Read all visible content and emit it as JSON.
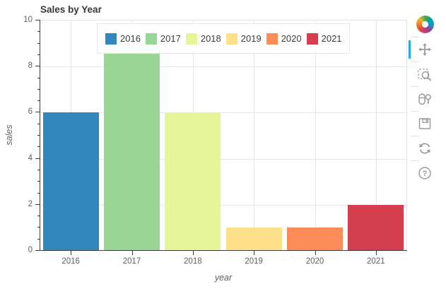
{
  "chart_data": {
    "type": "bar",
    "title": "Sales by Year",
    "xlabel": "year",
    "ylabel": "sales",
    "categories": [
      "2016",
      "2017",
      "2018",
      "2019",
      "2020",
      "2021"
    ],
    "values": [
      6,
      9,
      6,
      1,
      1,
      2
    ],
    "bar_colors": [
      "#3288bd",
      "#99d594",
      "#e6f598",
      "#fee08b",
      "#fc8d59",
      "#d53e4f"
    ],
    "ylim": [
      0,
      10
    ],
    "yticks": [
      0,
      2,
      4,
      6,
      8,
      10
    ],
    "minor_tick_step": 0.5,
    "grid": true,
    "gridline_color": "#e6e6e6",
    "outline_color": "#e5e5e5",
    "axis_color": "#3b3b3b",
    "tick_label_color": "#5f5f5f",
    "background": "#ffffff",
    "legend_position": "top-center-horizontal"
  },
  "legend": {
    "items": [
      {
        "label": "2016",
        "color": "#3288bd"
      },
      {
        "label": "2017",
        "color": "#99d594"
      },
      {
        "label": "2018",
        "color": "#e6f598"
      },
      {
        "label": "2019",
        "color": "#fee08b"
      },
      {
        "label": "2020",
        "color": "#fc8d59"
      },
      {
        "label": "2021",
        "color": "#d53e4f"
      }
    ]
  },
  "toolbar": {
    "active_color": "#26aae1",
    "icon_color": "#9c9c9c",
    "help_glyph": "?",
    "tools": [
      {
        "name": "pan",
        "active": true
      },
      {
        "name": "box-zoom",
        "active": false
      },
      {
        "name": "wheel-zoom",
        "active": false
      },
      {
        "name": "save",
        "active": false
      },
      {
        "name": "reset",
        "active": false
      },
      {
        "name": "help",
        "active": false
      }
    ]
  }
}
